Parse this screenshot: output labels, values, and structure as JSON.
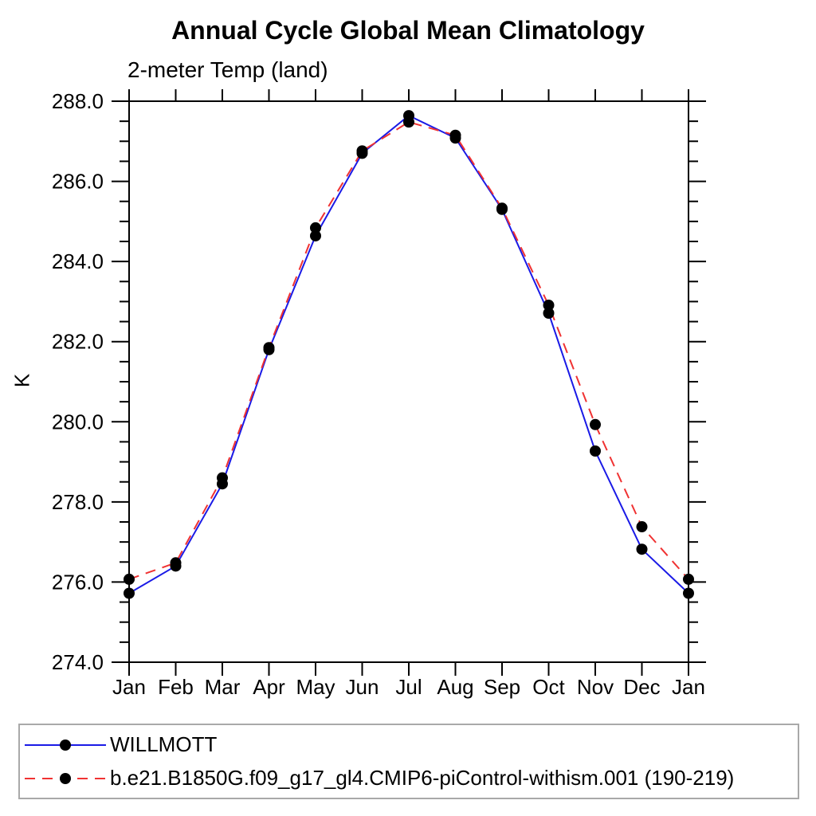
{
  "chart_data": {
    "type": "line",
    "title": "Annual Cycle Global Mean Climatology",
    "subtitle": "2-meter Temp (land)",
    "ylabel": "K",
    "xlabel": "",
    "ylim": [
      274.0,
      288.0
    ],
    "y_tick_step": 2.0,
    "y_minor_step": 0.5,
    "y_tick_labels": [
      "274.0",
      "276.0",
      "278.0",
      "280.0",
      "282.0",
      "284.0",
      "286.0",
      "288.0"
    ],
    "categories": [
      "Jan",
      "Feb",
      "Mar",
      "Apr",
      "May",
      "Jun",
      "Jul",
      "Aug",
      "Sep",
      "Oct",
      "Nov",
      "Dec",
      "Jan"
    ],
    "grid": false,
    "legend_position": "bottom-left-box",
    "marker": "filled-circle",
    "marker_color": "#000000",
    "axis_color": "#000000",
    "series": [
      {
        "name": "WILLMOTT",
        "color": "#1a1ae6",
        "style": "solid",
        "dash": "none",
        "values": [
          275.72,
          276.4,
          278.45,
          281.8,
          284.64,
          286.7,
          287.64,
          287.08,
          285.3,
          282.71,
          279.27,
          276.82,
          275.72
        ]
      },
      {
        "name": "b.e21.B1850G.f09_g17_gl4.CMIP6-piControl-withism.001 (190-219)",
        "color": "#f03232",
        "style": "dashed",
        "dash": "13,9",
        "values": [
          276.07,
          276.48,
          278.6,
          281.85,
          284.84,
          286.76,
          287.48,
          287.15,
          285.33,
          282.91,
          279.93,
          277.38,
          276.07
        ]
      }
    ]
  }
}
